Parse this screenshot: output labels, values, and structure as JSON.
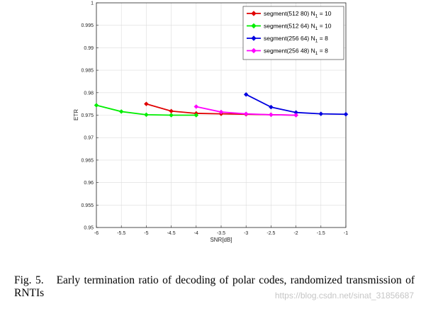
{
  "chart_data": {
    "type": "line",
    "xlabel": "SNR[dB]",
    "ylabel": "ETR",
    "xlim": [
      -6,
      -1
    ],
    "ylim": [
      0.95,
      1
    ],
    "xticks": [
      "-6",
      "-5.5",
      "-5",
      "-4.5",
      "-4",
      "-3.5",
      "-3",
      "-2.5",
      "-2",
      "-1.5",
      "-1"
    ],
    "yticks": [
      "0.95",
      "0.955",
      "0.96",
      "0.965",
      "0.97",
      "0.975",
      "0.98",
      "0.985",
      "0.99",
      "0.995",
      "1"
    ],
    "grid": true,
    "legend_position": "top-right",
    "series": [
      {
        "name": "segment(512 80) N",
        "name_sub": "1",
        "name_suffix": " = 10",
        "color": "#e00000",
        "x": [
          -5,
          -4.5,
          -4,
          -3.5,
          -3,
          -2.5,
          -2
        ],
        "y": [
          0.9775,
          0.9759,
          0.9754,
          0.9753,
          0.9752,
          0.9751,
          0.975
        ]
      },
      {
        "name": "segment(512 64) N",
        "name_sub": "1",
        "name_suffix": " = 10",
        "color": "#00ee00",
        "x": [
          -6,
          -5.5,
          -5,
          -4.5,
          -4
        ],
        "y": [
          0.9772,
          0.9758,
          0.9751,
          0.975,
          0.975
        ]
      },
      {
        "name": "segment(256 64) N",
        "name_sub": "1",
        "name_suffix": " = 8",
        "color": "#0000e0",
        "x": [
          -3,
          -2.5,
          -2,
          -1.5,
          -1
        ],
        "y": [
          0.9796,
          0.9768,
          0.9756,
          0.9753,
          0.9752
        ]
      },
      {
        "name": "segment(256 48) N",
        "name_sub": "1",
        "name_suffix": " = 8",
        "color": "#ff00ff",
        "x": [
          -4,
          -3.5,
          -3,
          -2.5,
          -2
        ],
        "y": [
          0.9769,
          0.9757,
          0.9753,
          0.9751,
          0.975
        ]
      }
    ]
  },
  "caption": {
    "label": "Fig. 5.",
    "text": "Early termination ratio of decoding of polar codes, randomized transmission of RNTIs"
  },
  "watermark": "https://blog.csdn.net/sinat_31856687"
}
